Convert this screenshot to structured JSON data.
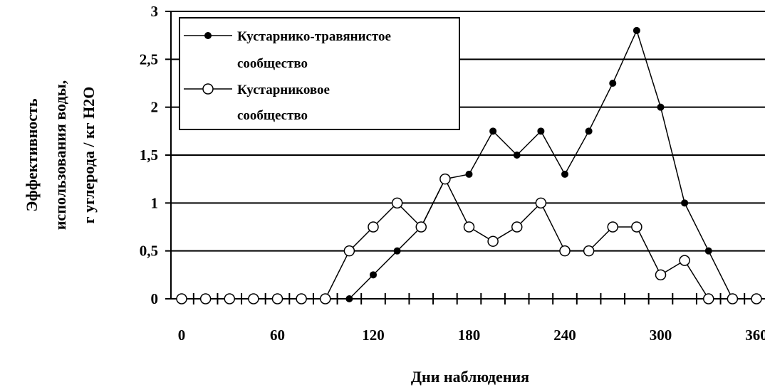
{
  "chart_data": {
    "type": "line",
    "xlabel": "Дни наблюдения",
    "ylabel": [
      "Эффективность",
      "использования воды,",
      "г углерода / кг H2O"
    ],
    "xlim": [
      0,
      360
    ],
    "ylim": [
      0,
      3
    ],
    "x_ticks": [
      "0",
      "60",
      "120",
      "180",
      "240",
      "300",
      "360"
    ],
    "y_ticks": [
      "0",
      "0,5",
      "1",
      "1,5",
      "2",
      "2,5",
      "3"
    ],
    "grid": "horizontal",
    "legend_position": "top-left",
    "series": [
      {
        "name": [
          "Кустарнико-травянистое",
          "сообщество"
        ],
        "marker": "filled-circle",
        "x": [
          105,
          120,
          135,
          150,
          165,
          180,
          195,
          210,
          225,
          240,
          255,
          270,
          285,
          300,
          315,
          330,
          345
        ],
        "y": [
          0,
          0.25,
          0.5,
          0.75,
          1.25,
          1.3,
          1.75,
          1.5,
          1.75,
          1.3,
          1.75,
          2.25,
          2.8,
          2.0,
          1.0,
          0.5,
          0
        ]
      },
      {
        "name": [
          "Кустарниковое",
          "сообщество"
        ],
        "marker": "open-circle",
        "x": [
          0,
          15,
          30,
          45,
          60,
          75,
          90,
          105,
          120,
          135,
          150,
          165,
          180,
          195,
          210,
          225,
          240,
          255,
          270,
          285,
          300,
          315,
          330,
          345,
          360
        ],
        "y": [
          0,
          0,
          0,
          0,
          0,
          0,
          0,
          0.5,
          0.75,
          1.0,
          0.75,
          1.25,
          0.75,
          0.6,
          0.75,
          1.0,
          0.5,
          0.5,
          0.75,
          0.75,
          0.25,
          0.4,
          0,
          0,
          0
        ]
      }
    ]
  }
}
